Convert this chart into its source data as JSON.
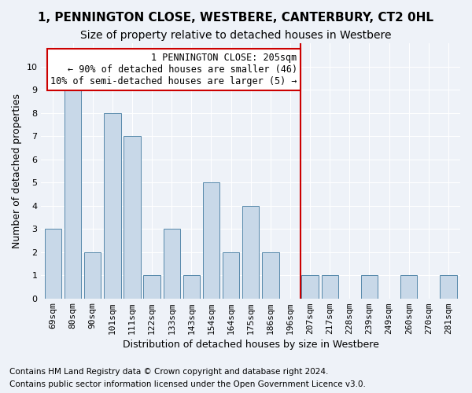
{
  "title1": "1, PENNINGTON CLOSE, WESTBERE, CANTERBURY, CT2 0HL",
  "title2": "Size of property relative to detached houses in Westbere",
  "xlabel": "Distribution of detached houses by size in Westbere",
  "ylabel": "Number of detached properties",
  "categories": [
    "69sqm",
    "80sqm",
    "90sqm",
    "101sqm",
    "111sqm",
    "122sqm",
    "133sqm",
    "143sqm",
    "154sqm",
    "164sqm",
    "175sqm",
    "186sqm",
    "196sqm",
    "207sqm",
    "217sqm",
    "228sqm",
    "239sqm",
    "249sqm",
    "260sqm",
    "270sqm",
    "281sqm"
  ],
  "values": [
    3,
    9,
    2,
    8,
    7,
    1,
    3,
    1,
    5,
    2,
    4,
    2,
    0,
    1,
    1,
    0,
    1,
    0,
    1,
    0,
    1
  ],
  "bar_color": "#c8d8e8",
  "bar_edge_color": "#5588aa",
  "vline_x": 12.5,
  "vline_color": "#cc0000",
  "annotation_text": "1 PENNINGTON CLOSE: 205sqm\n← 90% of detached houses are smaller (46)\n10% of semi-detached houses are larger (5) →",
  "annotation_box_color": "#ffffff",
  "annotation_box_edge": "#cc0000",
  "ylim": [
    0,
    11
  ],
  "yticks": [
    0,
    1,
    2,
    3,
    4,
    5,
    6,
    7,
    8,
    9,
    10
  ],
  "bg_color": "#eef2f8",
  "plot_bg_color": "#eef2f8",
  "grid_color": "#ffffff",
  "title1_fontsize": 11,
  "title2_fontsize": 10,
  "xlabel_fontsize": 9,
  "ylabel_fontsize": 9,
  "tick_fontsize": 8,
  "annotation_fontsize": 8.5,
  "footnote_fontsize": 7.5,
  "footnote1": "Contains HM Land Registry data © Crown copyright and database right 2024.",
  "footnote2": "Contains public sector information licensed under the Open Government Licence v3.0."
}
